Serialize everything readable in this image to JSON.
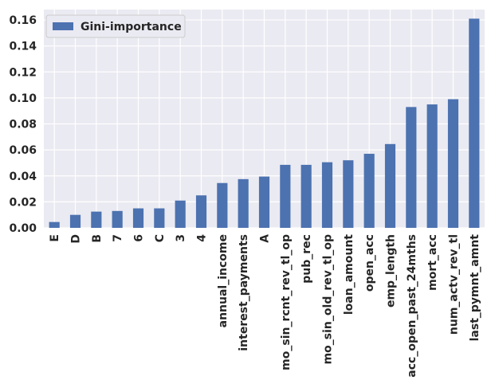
{
  "chart_data": {
    "type": "bar",
    "categories": [
      "E",
      "D",
      "B",
      "7",
      "6",
      "C",
      "3",
      "4",
      "annual_income",
      "interest_payments",
      "A",
      "mo_sin_rcnt_rev_tl_op",
      "pub_rec",
      "mo_sin_old_rev_tl_op",
      "loan_amount",
      "open_acc",
      "emp_length",
      "acc_open_past_24mths",
      "mort_acc",
      "num_actv_rev_tl",
      "last_pymnt_amnt"
    ],
    "series": [
      {
        "name": "Gini-importance",
        "color": "#4c72b0",
        "values": [
          0.0045,
          0.01,
          0.0125,
          0.013,
          0.015,
          0.015,
          0.021,
          0.025,
          0.0345,
          0.0375,
          0.0395,
          0.0485,
          0.0485,
          0.0505,
          0.052,
          0.057,
          0.0645,
          0.093,
          0.095,
          0.099,
          0.161
        ]
      }
    ],
    "yticks": [
      "0.00",
      "0.02",
      "0.04",
      "0.06",
      "0.08",
      "0.10",
      "0.12",
      "0.14",
      "0.16"
    ],
    "ylim": [
      0,
      0.168
    ],
    "grid": true,
    "legend_position": "top-left",
    "background": "#eaeaf2",
    "grid_color": "#ffffff"
  }
}
